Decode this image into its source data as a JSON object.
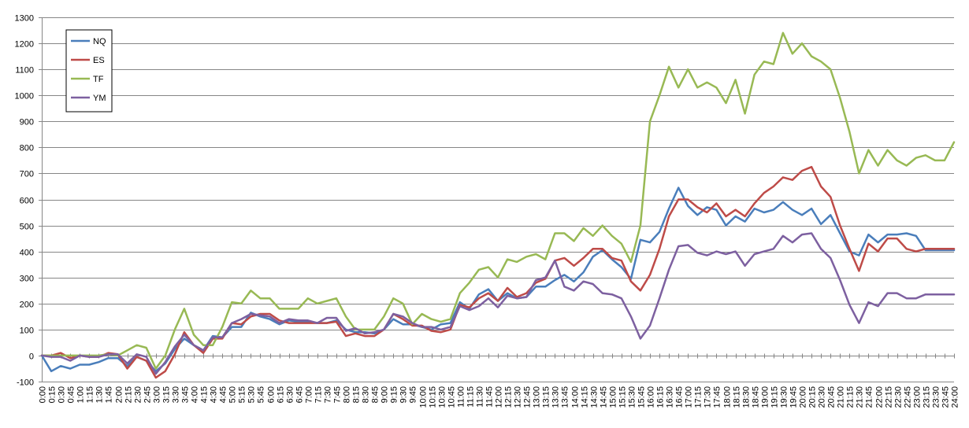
{
  "chart_data": {
    "type": "line",
    "title": "",
    "xlabel": "",
    "ylabel": "",
    "ylim": [
      -100,
      1300
    ],
    "ytick_step": 100,
    "grid": true,
    "legend_position": "top-left",
    "x": [
      "0:00",
      "0:15",
      "0:30",
      "0:45",
      "1:00",
      "1:15",
      "1:30",
      "1:45",
      "2:00",
      "2:15",
      "2:30",
      "2:45",
      "3:00",
      "3:15",
      "3:30",
      "3:45",
      "4:00",
      "4:15",
      "4:30",
      "4:45",
      "5:00",
      "5:15",
      "5:30",
      "5:45",
      "6:00",
      "6:15",
      "6:30",
      "6:45",
      "7:00",
      "7:15",
      "7:30",
      "7:45",
      "8:00",
      "8:15",
      "8:30",
      "8:45",
      "9:00",
      "9:15",
      "9:30",
      "9:45",
      "10:00",
      "10:15",
      "10:30",
      "10:45",
      "11:00",
      "11:15",
      "11:30",
      "11:45",
      "12:00",
      "12:15",
      "12:30",
      "12:45",
      "13:00",
      "13:15",
      "13:30",
      "13:45",
      "14:00",
      "14:15",
      "14:30",
      "14:45",
      "15:00",
      "15:15",
      "15:30",
      "15:45",
      "16:00",
      "16:15",
      "16:30",
      "16:45",
      "17:00",
      "17:15",
      "17:30",
      "17:45",
      "18:00",
      "18:15",
      "18:30",
      "18:45",
      "19:00",
      "19:15",
      "19:30",
      "19:45",
      "20:00",
      "20:15",
      "20:30",
      "20:45",
      "21:00",
      "21:15",
      "21:30",
      "21:45",
      "22:00",
      "22:15",
      "22:30",
      "22:45",
      "23:00",
      "23:15",
      "23:30",
      "23:45",
      "24:00"
    ],
    "series": [
      {
        "name": "NQ",
        "color": "#4a7ebb",
        "values": [
          0,
          -60,
          -40,
          -50,
          -35,
          -35,
          -25,
          -10,
          -10,
          -40,
          -5,
          -20,
          -60,
          -30,
          25,
          65,
          40,
          20,
          75,
          70,
          110,
          110,
          165,
          150,
          140,
          120,
          135,
          130,
          130,
          125,
          125,
          135,
          100,
          90,
          90,
          85,
          100,
          140,
          120,
          120,
          110,
          100,
          120,
          125,
          205,
          180,
          235,
          255,
          210,
          240,
          220,
          225,
          265,
          265,
          290,
          310,
          285,
          320,
          380,
          405,
          370,
          340,
          295,
          445,
          435,
          475,
          565,
          645,
          575,
          540,
          570,
          560,
          500,
          535,
          515,
          565,
          550,
          560,
          590,
          560,
          540,
          565,
          505,
          540,
          470,
          400,
          385,
          465,
          435,
          465,
          465,
          470,
          460,
          405,
          405,
          405,
          405
        ]
      },
      {
        "name": "ES",
        "color": "#be4b48",
        "values": [
          0,
          0,
          10,
          -10,
          0,
          -5,
          -5,
          10,
          5,
          -50,
          -5,
          -20,
          -85,
          -60,
          5,
          90,
          40,
          10,
          65,
          65,
          125,
          120,
          150,
          160,
          160,
          135,
          125,
          125,
          125,
          125,
          125,
          130,
          75,
          85,
          75,
          75,
          100,
          160,
          140,
          115,
          115,
          95,
          90,
          100,
          195,
          185,
          220,
          240,
          210,
          260,
          225,
          240,
          280,
          295,
          365,
          375,
          345,
          375,
          410,
          410,
          375,
          365,
          285,
          250,
          310,
          410,
          535,
          600,
          600,
          570,
          550,
          585,
          535,
          560,
          535,
          585,
          625,
          650,
          685,
          675,
          710,
          725,
          650,
          610,
          500,
          410,
          325,
          430,
          400,
          450,
          450,
          410,
          400,
          410,
          410,
          410,
          410
        ]
      },
      {
        "name": "TF",
        "color": "#98b954",
        "values": [
          0,
          0,
          0,
          0,
          0,
          0,
          0,
          5,
          0,
          20,
          40,
          30,
          -50,
          0,
          100,
          180,
          80,
          40,
          40,
          110,
          205,
          200,
          250,
          220,
          220,
          180,
          180,
          180,
          220,
          200,
          210,
          220,
          150,
          100,
          100,
          100,
          150,
          220,
          200,
          120,
          160,
          140,
          130,
          140,
          240,
          280,
          330,
          340,
          300,
          370,
          360,
          380,
          390,
          370,
          470,
          470,
          440,
          490,
          460,
          500,
          460,
          430,
          360,
          500,
          900,
          1000,
          1110,
          1030,
          1100,
          1030,
          1050,
          1030,
          970,
          1060,
          930,
          1080,
          1130,
          1120,
          1240,
          1160,
          1200,
          1150,
          1130,
          1100,
          990,
          860,
          700,
          790,
          730,
          790,
          750,
          730,
          760,
          770,
          750,
          750,
          820
        ]
      },
      {
        "name": "YM",
        "color": "#7d60a0",
        "values": [
          0,
          -5,
          -5,
          -20,
          0,
          -5,
          -5,
          5,
          5,
          -30,
          5,
          -5,
          -70,
          -25,
          35,
          80,
          40,
          20,
          70,
          70,
          125,
          140,
          160,
          155,
          150,
          125,
          140,
          135,
          135,
          125,
          145,
          145,
          95,
          105,
          85,
          90,
          100,
          160,
          150,
          125,
          110,
          110,
          100,
          110,
          190,
          175,
          190,
          220,
          185,
          230,
          220,
          225,
          290,
          300,
          365,
          265,
          250,
          285,
          275,
          240,
          235,
          220,
          150,
          65,
          115,
          220,
          330,
          420,
          425,
          395,
          385,
          400,
          390,
          400,
          345,
          390,
          400,
          410,
          460,
          435,
          465,
          470,
          410,
          375,
          290,
          195,
          125,
          205,
          190,
          240,
          240,
          220,
          220,
          235,
          235,
          235,
          235
        ]
      }
    ],
    "legend": [
      "NQ",
      "ES",
      "TF",
      "YM"
    ]
  }
}
